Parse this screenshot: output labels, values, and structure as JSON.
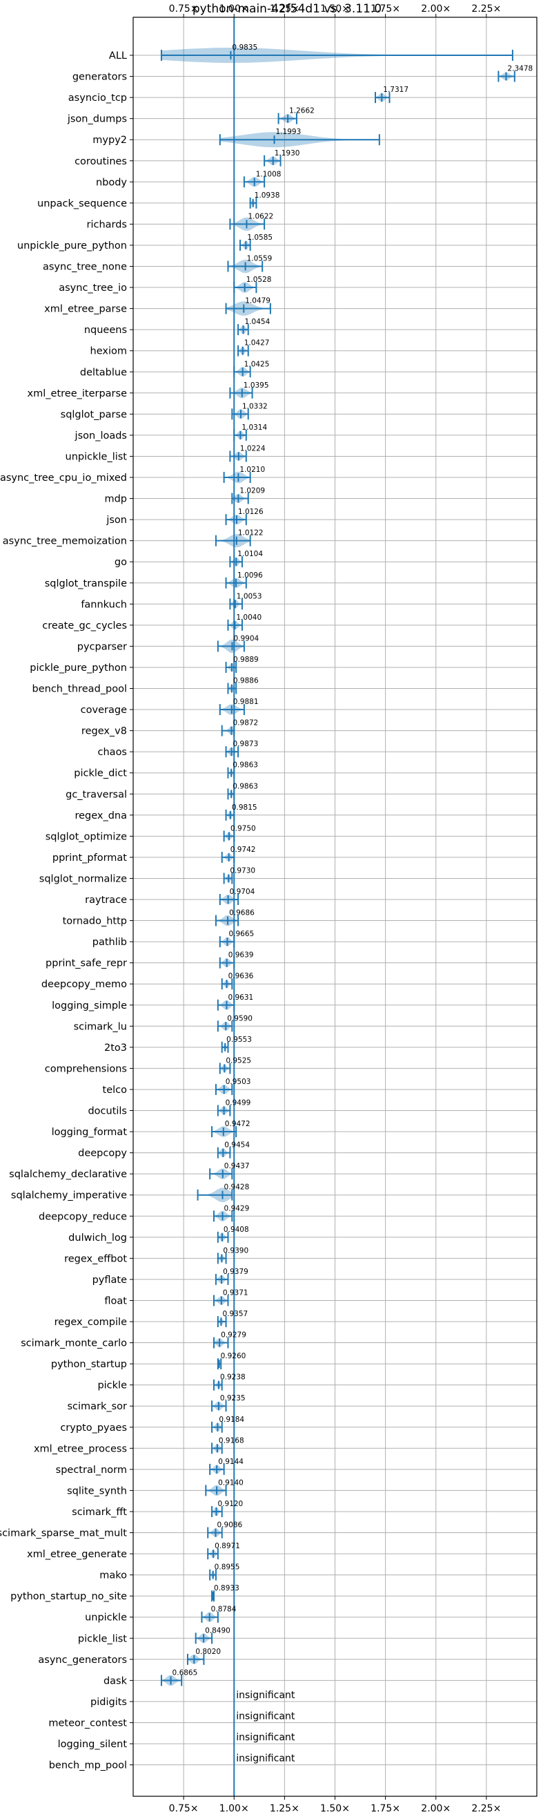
{
  "chart_data": {
    "type": "violin",
    "title": "python-main-42f54d1 vs. 3.11.0",
    "xlabel": "",
    "ylabel": "",
    "xlim": [
      0.5,
      2.5
    ],
    "xticks": [
      0.75,
      1.0,
      1.25,
      1.5,
      1.75,
      2.0,
      2.25
    ],
    "xtick_labels": [
      "0.75×",
      "1.00×",
      "1.25×",
      "1.50×",
      "1.75×",
      "2.00×",
      "2.25×"
    ],
    "reference_value": 1.0,
    "grid": true,
    "color": "#1f77b4",
    "insignificant_text": "insignificant",
    "benchmarks": [
      {
        "name": "ALL",
        "label": "0.9835",
        "mean": 0.9835,
        "min": 0.64,
        "max": 2.38,
        "width": 0.85
      },
      {
        "name": "generators",
        "label": "2.3478",
        "mean": 2.3478,
        "min": 2.31,
        "max": 2.39,
        "width": 0.45
      },
      {
        "name": "asyncio_tcp",
        "label": "1.7317",
        "mean": 1.7317,
        "min": 1.7,
        "max": 1.77,
        "width": 0.5
      },
      {
        "name": "json_dumps",
        "label": "1.2662",
        "mean": 1.2662,
        "min": 1.22,
        "max": 1.31,
        "width": 0.5
      },
      {
        "name": "mypy2",
        "label": "1.1993",
        "mean": 1.1993,
        "min": 0.93,
        "max": 1.72,
        "width": 0.85
      },
      {
        "name": "coroutines",
        "label": "1.1930",
        "mean": 1.193,
        "min": 1.15,
        "max": 1.23,
        "width": 0.5
      },
      {
        "name": "nbody",
        "label": "1.1008",
        "mean": 1.1008,
        "min": 1.05,
        "max": 1.15,
        "width": 0.55
      },
      {
        "name": "unpack_sequence",
        "label": "1.0938",
        "mean": 1.0938,
        "min": 1.08,
        "max": 1.11,
        "width": 0.4
      },
      {
        "name": "richards",
        "label": "1.0622",
        "mean": 1.0622,
        "min": 0.98,
        "max": 1.15,
        "width": 0.75
      },
      {
        "name": "unpickle_pure_python",
        "label": "1.0585",
        "mean": 1.0585,
        "min": 1.03,
        "max": 1.08,
        "width": 0.5
      },
      {
        "name": "async_tree_none",
        "label": "1.0559",
        "mean": 1.0559,
        "min": 0.97,
        "max": 1.14,
        "width": 0.75
      },
      {
        "name": "async_tree_io",
        "label": "1.0528",
        "mean": 1.0528,
        "min": 1.0,
        "max": 1.11,
        "width": 0.6
      },
      {
        "name": "xml_etree_parse",
        "label": "1.0479",
        "mean": 1.0479,
        "min": 0.96,
        "max": 1.18,
        "width": 0.8
      },
      {
        "name": "nqueens",
        "label": "1.0454",
        "mean": 1.0454,
        "min": 1.02,
        "max": 1.07,
        "width": 0.5
      },
      {
        "name": "hexiom",
        "label": "1.0427",
        "mean": 1.0427,
        "min": 1.02,
        "max": 1.07,
        "width": 0.45
      },
      {
        "name": "deltablue",
        "label": "1.0425",
        "mean": 1.0425,
        "min": 1.0,
        "max": 1.08,
        "width": 0.55
      },
      {
        "name": "xml_etree_iterparse",
        "label": "1.0395",
        "mean": 1.0395,
        "min": 0.98,
        "max": 1.09,
        "width": 0.6
      },
      {
        "name": "sqlglot_parse",
        "label": "1.0332",
        "mean": 1.0332,
        "min": 0.99,
        "max": 1.07,
        "width": 0.55
      },
      {
        "name": "json_loads",
        "label": "1.0314",
        "mean": 1.0314,
        "min": 1.0,
        "max": 1.06,
        "width": 0.5
      },
      {
        "name": "unpickle_list",
        "label": "1.0224",
        "mean": 1.0224,
        "min": 0.98,
        "max": 1.06,
        "width": 0.5
      },
      {
        "name": "async_tree_cpu_io_mixed",
        "label": "1.0210",
        "mean": 1.021,
        "min": 0.95,
        "max": 1.08,
        "width": 0.65
      },
      {
        "name": "mdp",
        "label": "1.0209",
        "mean": 1.0209,
        "min": 0.99,
        "max": 1.07,
        "width": 0.5
      },
      {
        "name": "json",
        "label": "1.0126",
        "mean": 1.0126,
        "min": 0.96,
        "max": 1.06,
        "width": 0.55
      },
      {
        "name": "async_tree_memoization",
        "label": "1.0122",
        "mean": 1.0122,
        "min": 0.91,
        "max": 1.08,
        "width": 0.75
      },
      {
        "name": "go",
        "label": "1.0104",
        "mean": 1.0104,
        "min": 0.98,
        "max": 1.04,
        "width": 0.5
      },
      {
        "name": "sqlglot_transpile",
        "label": "1.0096",
        "mean": 1.0096,
        "min": 0.96,
        "max": 1.06,
        "width": 0.55
      },
      {
        "name": "fannkuch",
        "label": "1.0053",
        "mean": 1.0053,
        "min": 0.98,
        "max": 1.04,
        "width": 0.5
      },
      {
        "name": "create_gc_cycles",
        "label": "1.0040",
        "mean": 1.004,
        "min": 0.97,
        "max": 1.04,
        "width": 0.5
      },
      {
        "name": "pycparser",
        "label": "0.9904",
        "mean": 0.9904,
        "min": 0.92,
        "max": 1.05,
        "width": 0.75
      },
      {
        "name": "pickle_pure_python",
        "label": "0.9889",
        "mean": 0.9889,
        "min": 0.96,
        "max": 1.01,
        "width": 0.5
      },
      {
        "name": "bench_thread_pool",
        "label": "0.9886",
        "mean": 0.9886,
        "min": 0.97,
        "max": 1.01,
        "width": 0.45
      },
      {
        "name": "coverage",
        "label": "0.9881",
        "mean": 0.9881,
        "min": 0.93,
        "max": 1.05,
        "width": 0.6
      },
      {
        "name": "regex_v8",
        "label": "0.9872",
        "mean": 0.9872,
        "min": 0.94,
        "max": 1.0,
        "width": 0.5
      },
      {
        "name": "chaos",
        "label": "0.9873",
        "mean": 0.9873,
        "min": 0.96,
        "max": 1.02,
        "width": 0.5
      },
      {
        "name": "pickle_dict",
        "label": "0.9863",
        "mean": 0.9863,
        "min": 0.97,
        "max": 1.0,
        "width": 0.4
      },
      {
        "name": "gc_traversal",
        "label": "0.9863",
        "mean": 0.9863,
        "min": 0.97,
        "max": 1.0,
        "width": 0.4
      },
      {
        "name": "regex_dna",
        "label": "0.9815",
        "mean": 0.9815,
        "min": 0.96,
        "max": 1.0,
        "width": 0.45
      },
      {
        "name": "sqlglot_optimize",
        "label": "0.9750",
        "mean": 0.975,
        "min": 0.95,
        "max": 1.0,
        "width": 0.45
      },
      {
        "name": "pprint_pformat",
        "label": "0.9742",
        "mean": 0.9742,
        "min": 0.94,
        "max": 1.0,
        "width": 0.45
      },
      {
        "name": "sqlglot_normalize",
        "label": "0.9730",
        "mean": 0.973,
        "min": 0.95,
        "max": 0.99,
        "width": 0.45
      },
      {
        "name": "raytrace",
        "label": "0.9704",
        "mean": 0.9704,
        "min": 0.93,
        "max": 1.02,
        "width": 0.55
      },
      {
        "name": "tornado_http",
        "label": "0.9686",
        "mean": 0.9686,
        "min": 0.91,
        "max": 1.02,
        "width": 0.6
      },
      {
        "name": "pathlib",
        "label": "0.9665",
        "mean": 0.9665,
        "min": 0.93,
        "max": 1.0,
        "width": 0.5
      },
      {
        "name": "pprint_safe_repr",
        "label": "0.9639",
        "mean": 0.9639,
        "min": 0.93,
        "max": 1.0,
        "width": 0.5
      },
      {
        "name": "deepcopy_memo",
        "label": "0.9636",
        "mean": 0.9636,
        "min": 0.94,
        "max": 0.99,
        "width": 0.45
      },
      {
        "name": "logging_simple",
        "label": "0.9631",
        "mean": 0.9631,
        "min": 0.92,
        "max": 1.0,
        "width": 0.55
      },
      {
        "name": "scimark_lu",
        "label": "0.9590",
        "mean": 0.959,
        "min": 0.92,
        "max": 0.99,
        "width": 0.5
      },
      {
        "name": "2to3",
        "label": "0.9553",
        "mean": 0.9553,
        "min": 0.94,
        "max": 0.97,
        "width": 0.35
      },
      {
        "name": "comprehensions",
        "label": "0.9525",
        "mean": 0.9525,
        "min": 0.93,
        "max": 0.98,
        "width": 0.45
      },
      {
        "name": "telco",
        "label": "0.9503",
        "mean": 0.9503,
        "min": 0.91,
        "max": 0.99,
        "width": 0.55
      },
      {
        "name": "docutils",
        "label": "0.9499",
        "mean": 0.9499,
        "min": 0.92,
        "max": 0.98,
        "width": 0.5
      },
      {
        "name": "logging_format",
        "label": "0.9472",
        "mean": 0.9472,
        "min": 0.89,
        "max": 1.01,
        "width": 0.6
      },
      {
        "name": "deepcopy",
        "label": "0.9454",
        "mean": 0.9454,
        "min": 0.92,
        "max": 0.98,
        "width": 0.5
      },
      {
        "name": "sqlalchemy_declarative",
        "label": "0.9437",
        "mean": 0.9437,
        "min": 0.88,
        "max": 0.99,
        "width": 0.6
      },
      {
        "name": "sqlalchemy_imperative",
        "label": "0.9428",
        "mean": 0.9428,
        "min": 0.82,
        "max": 0.99,
        "width": 0.8
      },
      {
        "name": "deepcopy_reduce",
        "label": "0.9429",
        "mean": 0.9429,
        "min": 0.9,
        "max": 0.99,
        "width": 0.6
      },
      {
        "name": "dulwich_log",
        "label": "0.9408",
        "mean": 0.9408,
        "min": 0.92,
        "max": 0.97,
        "width": 0.5
      },
      {
        "name": "regex_effbot",
        "label": "0.9390",
        "mean": 0.939,
        "min": 0.92,
        "max": 0.96,
        "width": 0.4
      },
      {
        "name": "pyflate",
        "label": "0.9379",
        "mean": 0.9379,
        "min": 0.91,
        "max": 0.97,
        "width": 0.5
      },
      {
        "name": "float",
        "label": "0.9371",
        "mean": 0.9371,
        "min": 0.9,
        "max": 0.97,
        "width": 0.5
      },
      {
        "name": "regex_compile",
        "label": "0.9357",
        "mean": 0.9357,
        "min": 0.92,
        "max": 0.96,
        "width": 0.4
      },
      {
        "name": "scimark_monte_carlo",
        "label": "0.9279",
        "mean": 0.9279,
        "min": 0.9,
        "max": 0.97,
        "width": 0.5
      },
      {
        "name": "python_startup",
        "label": "0.9260",
        "mean": 0.926,
        "min": 0.92,
        "max": 0.935,
        "width": 0.3
      },
      {
        "name": "pickle",
        "label": "0.9238",
        "mean": 0.9238,
        "min": 0.9,
        "max": 0.94,
        "width": 0.45
      },
      {
        "name": "scimark_sor",
        "label": "0.9235",
        "mean": 0.9235,
        "min": 0.89,
        "max": 0.96,
        "width": 0.5
      },
      {
        "name": "crypto_pyaes",
        "label": "0.9184",
        "mean": 0.9184,
        "min": 0.89,
        "max": 0.94,
        "width": 0.5
      },
      {
        "name": "xml_etree_process",
        "label": "0.9168",
        "mean": 0.9168,
        "min": 0.89,
        "max": 0.94,
        "width": 0.5
      },
      {
        "name": "spectral_norm",
        "label": "0.9144",
        "mean": 0.9144,
        "min": 0.88,
        "max": 0.95,
        "width": 0.5
      },
      {
        "name": "sqlite_synth",
        "label": "0.9140",
        "mean": 0.914,
        "min": 0.86,
        "max": 0.96,
        "width": 0.6
      },
      {
        "name": "scimark_fft",
        "label": "0.9120",
        "mean": 0.912,
        "min": 0.89,
        "max": 0.94,
        "width": 0.5
      },
      {
        "name": "scimark_sparse_mat_mult",
        "label": "0.9086",
        "mean": 0.9086,
        "min": 0.87,
        "max": 0.94,
        "width": 0.5
      },
      {
        "name": "xml_etree_generate",
        "label": "0.8971",
        "mean": 0.8971,
        "min": 0.87,
        "max": 0.92,
        "width": 0.45
      },
      {
        "name": "mako",
        "label": "0.8955",
        "mean": 0.8955,
        "min": 0.88,
        "max": 0.91,
        "width": 0.4
      },
      {
        "name": "python_startup_no_site",
        "label": "0.8933",
        "mean": 0.8933,
        "min": 0.89,
        "max": 0.9,
        "width": 0.3
      },
      {
        "name": "unpickle",
        "label": "0.8784",
        "mean": 0.8784,
        "min": 0.84,
        "max": 0.92,
        "width": 0.55
      },
      {
        "name": "pickle_list",
        "label": "0.8490",
        "mean": 0.849,
        "min": 0.81,
        "max": 0.89,
        "width": 0.55
      },
      {
        "name": "async_generators",
        "label": "0.8020",
        "mean": 0.802,
        "min": 0.77,
        "max": 0.85,
        "width": 0.55
      },
      {
        "name": "dask",
        "label": "0.6865",
        "mean": 0.6865,
        "min": 0.64,
        "max": 0.74,
        "width": 0.6
      },
      {
        "name": "pidigits",
        "insignificant": true
      },
      {
        "name": "meteor_contest",
        "insignificant": true
      },
      {
        "name": "logging_silent",
        "insignificant": true
      },
      {
        "name": "bench_mp_pool",
        "insignificant": true
      }
    ]
  }
}
